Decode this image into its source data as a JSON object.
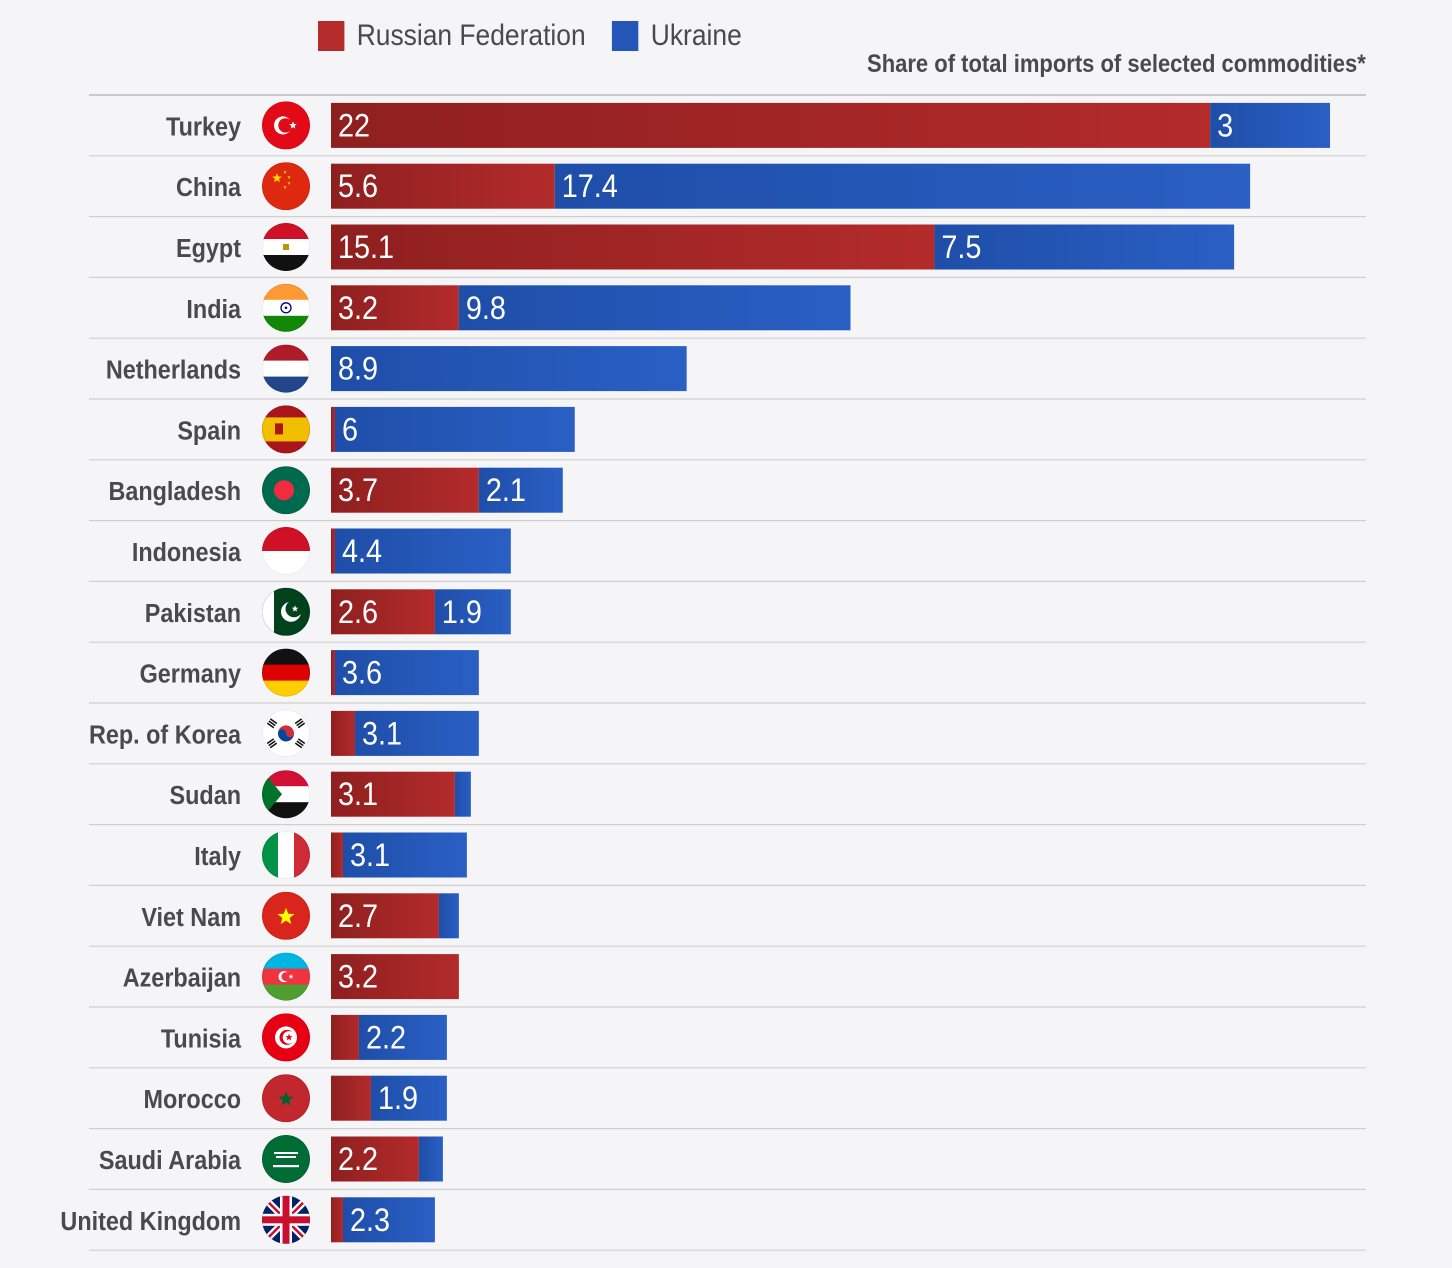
{
  "chart_data": {
    "type": "bar",
    "stacked": true,
    "orientation": "horizontal",
    "title": "",
    "subtitle": "Share of total imports of selected commodities*",
    "xlim": [
      0,
      25.8
    ],
    "grid": false,
    "legend_position": "top-left",
    "categories": [
      "Turkey",
      "China",
      "Egypt",
      "India",
      "Netherlands",
      "Spain",
      "Bangladesh",
      "Indonesia",
      "Pakistan",
      "Germany",
      "Rep. of Korea",
      "Sudan",
      "Italy",
      "Viet Nam",
      "Azerbaijan",
      "Tunisia",
      "Morocco",
      "Saudi Arabia",
      "United Kingdom"
    ],
    "series": [
      {
        "name": "Russian Federation",
        "color": "#b32b2b",
        "values": [
          22,
          5.6,
          15.1,
          3.2,
          0,
          0.1,
          3.7,
          0.1,
          2.6,
          0.1,
          0.6,
          3.1,
          0.3,
          2.7,
          3.2,
          0.7,
          1.0,
          2.2,
          0.3
        ],
        "labels": [
          "22",
          "5.6",
          "15.1",
          "3.2",
          "",
          "",
          "3.7",
          "",
          "2.6",
          "",
          "",
          "3.1",
          "",
          "2.7",
          "3.2",
          "",
          "",
          "2.2",
          ""
        ]
      },
      {
        "name": "Ukraine",
        "color": "#2457b7",
        "values": [
          3,
          17.4,
          7.5,
          9.8,
          8.9,
          6,
          2.1,
          4.4,
          1.9,
          3.6,
          3.1,
          0.4,
          3.1,
          0.5,
          0,
          2.2,
          1.9,
          0.6,
          2.3
        ],
        "labels": [
          "3",
          "17.4",
          "7.5",
          "9.8",
          "8.9",
          "6",
          "2.1",
          "4.4",
          "1.9",
          "3.6",
          "3.1",
          "",
          "3.1",
          "",
          "",
          "2.2",
          "1.9",
          "",
          "2.3"
        ]
      }
    ],
    "flag_icons": [
      "turkey-flag-icon",
      "china-flag-icon",
      "egypt-flag-icon",
      "india-flag-icon",
      "netherlands-flag-icon",
      "spain-flag-icon",
      "bangladesh-flag-icon",
      "indonesia-flag-icon",
      "pakistan-flag-icon",
      "germany-flag-icon",
      "korea-flag-icon",
      "sudan-flag-icon",
      "italy-flag-icon",
      "vietnam-flag-icon",
      "azerbaijan-flag-icon",
      "tunisia-flag-icon",
      "morocco-flag-icon",
      "saudi-arabia-flag-icon",
      "united-kingdom-flag-icon"
    ]
  }
}
